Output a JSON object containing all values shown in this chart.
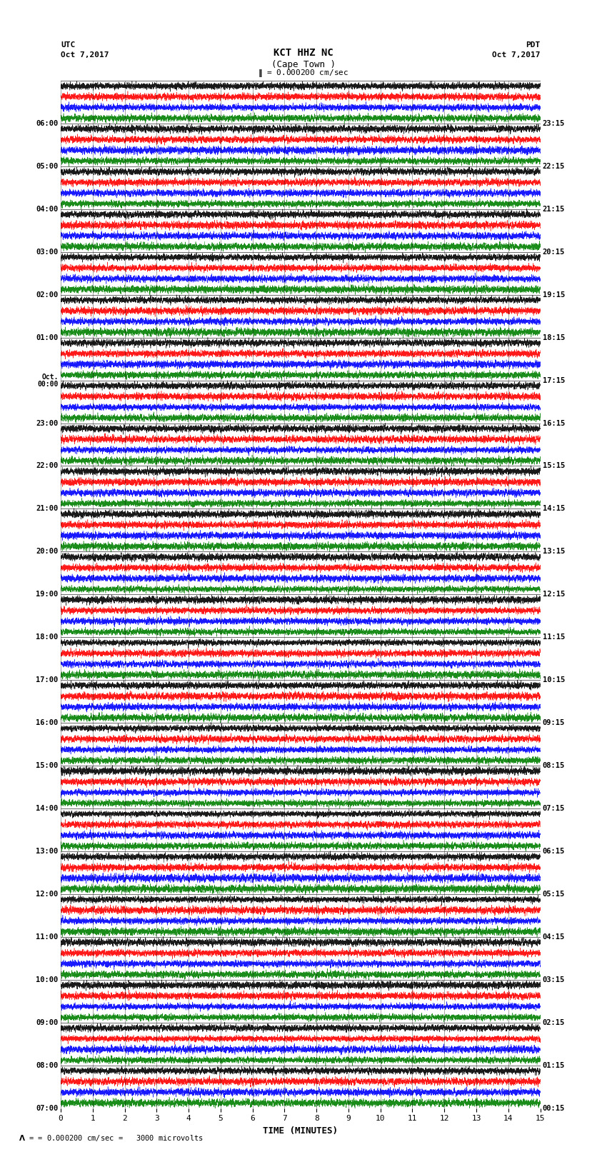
{
  "title_line1": "KCT HHZ NC",
  "title_line2": "(Cape Town )",
  "scale_label": "= 0.000200 cm/sec",
  "bottom_label": "= 0.000200 cm/sec =   3000 microvolts",
  "left_header": "UTC",
  "left_date": "Oct 7,2017",
  "right_header": "PDT",
  "right_date": "Oct 7,2017",
  "xlabel": "TIME (MINUTES)",
  "xticks": [
    0,
    1,
    2,
    3,
    4,
    5,
    6,
    7,
    8,
    9,
    10,
    11,
    12,
    13,
    14,
    15
  ],
  "left_times_labeled": [
    "07:00",
    "08:00",
    "09:00",
    "10:00",
    "11:00",
    "12:00",
    "13:00",
    "14:00",
    "15:00",
    "16:00",
    "17:00",
    "18:00",
    "19:00",
    "20:00",
    "21:00",
    "22:00",
    "23:00",
    "Oct.\n00:00",
    "01:00",
    "02:00",
    "03:00",
    "04:00",
    "05:00",
    "06:00"
  ],
  "right_times_labeled": [
    "00:15",
    "01:15",
    "02:15",
    "03:15",
    "04:15",
    "05:15",
    "06:15",
    "07:15",
    "08:15",
    "09:15",
    "10:15",
    "11:15",
    "12:15",
    "13:15",
    "14:15",
    "15:15",
    "16:15",
    "17:15",
    "18:15",
    "19:15",
    "20:15",
    "21:15",
    "22:15",
    "23:15"
  ],
  "num_rows": 24,
  "traces_per_row": 4,
  "colors": [
    "black",
    "red",
    "blue",
    "green"
  ],
  "background_color": "white",
  "fig_width": 8.5,
  "fig_height": 16.13,
  "dpi": 100,
  "xmin": 0,
  "xmax": 15,
  "random_seed": 42
}
